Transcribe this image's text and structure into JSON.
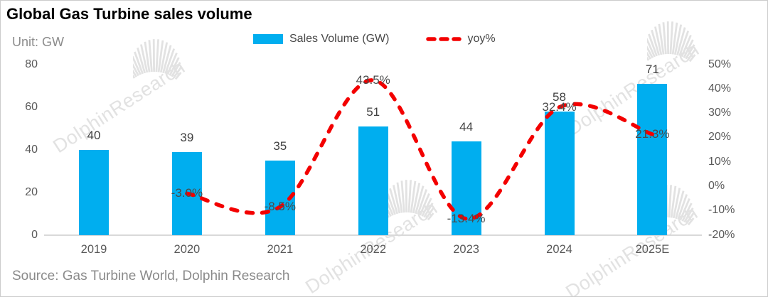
{
  "header": {
    "title": "Global Gas Turbine sales volume",
    "unit_label": "Unit: GW"
  },
  "legend": {
    "bar_label": "Sales Volume (GW)",
    "line_label": "yoy%"
  },
  "footer": {
    "source": "Source: Gas Turbine World, Dolphin Research"
  },
  "watermark": {
    "text": "DolphinResearch"
  },
  "colors": {
    "bar": "#00AEEF",
    "line": "#F30000",
    "axis": "#D9D9D9",
    "tick_label": "#595959",
    "data_label": "#404040",
    "muted": "#8A8A8A",
    "watermark": "#E2E2E2"
  },
  "chart_data": {
    "type": "bar",
    "subtype": "bar+line-combo",
    "categories": [
      "2019",
      "2020",
      "2021",
      "2022",
      "2023",
      "2024",
      "2025E"
    ],
    "series": [
      {
        "name": "Sales Volume (GW)",
        "type": "bar",
        "axis": "left",
        "color": "#00AEEF",
        "values": [
          40,
          39,
          35,
          51,
          44,
          58,
          71
        ]
      },
      {
        "name": "yoy%",
        "type": "line",
        "axis": "right",
        "color": "#F30000",
        "style": "dashed",
        "values": [
          null,
          -3.0,
          -8.5,
          43.5,
          -13.4,
          32.4,
          21.3
        ],
        "value_labels": [
          "",
          "-3.0%",
          "-8.5%",
          "43.5%",
          "-13.4%",
          "32.4%",
          "21.3%"
        ]
      }
    ],
    "left_axis": {
      "label": "GW",
      "ticks": [
        "0",
        "20",
        "40",
        "60",
        "80"
      ],
      "range": [
        0,
        80
      ]
    },
    "right_axis": {
      "ticks": [
        "-20%",
        "-10%",
        "0%",
        "10%",
        "20%",
        "30%",
        "40%",
        "50%"
      ],
      "range": [
        -20,
        50
      ]
    },
    "grid": "off",
    "legend_position": "top-center"
  }
}
